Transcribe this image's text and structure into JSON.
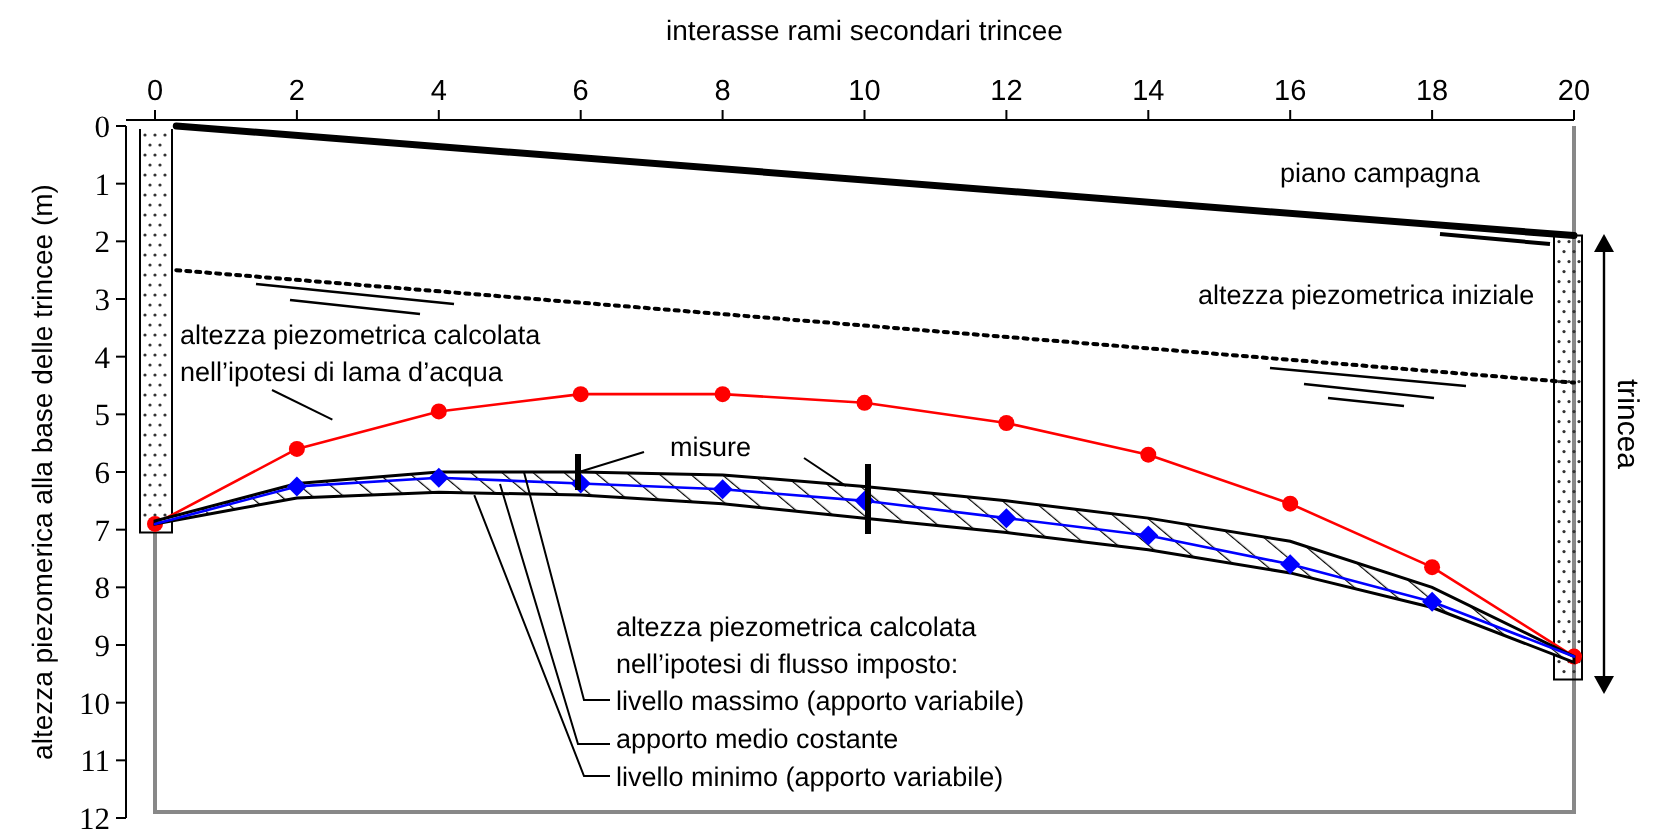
{
  "chart_data": {
    "type": "line",
    "xlabel": "interasse rami secondari trincee",
    "ylabel": "altezza piezomerica alla base delle trincee (m)",
    "xlim": [
      0,
      20
    ],
    "xticks": [
      0,
      2,
      4,
      6,
      8,
      10,
      12,
      14,
      16,
      18,
      20
    ],
    "ylim": [
      12,
      0
    ],
    "yticks": [
      0,
      1,
      2,
      3,
      4,
      5,
      6,
      7,
      8,
      9,
      10,
      11,
      12
    ],
    "series": [
      {
        "name": "piano campagna",
        "type": "line",
        "color": "#000000",
        "x": [
          0.3,
          20
        ],
        "values": [
          0,
          1.9
        ]
      },
      {
        "name": "altezza piezometrica iniziale",
        "type": "line",
        "line_style": "dotted",
        "color": "#000000",
        "x": [
          0.3,
          20
        ],
        "values": [
          2.5,
          4.45
        ]
      },
      {
        "type": "line",
        "marker": "circle",
        "color": "#ff0000",
        "x": [
          0,
          2,
          4,
          6,
          8,
          10,
          12,
          14,
          16,
          18,
          20
        ],
        "values": [
          6.9,
          5.6,
          4.95,
          4.65,
          4.65,
          4.8,
          5.15,
          5.7,
          6.55,
          7.65,
          9.2
        ]
      },
      {
        "name": "apporto medio costante",
        "type": "line",
        "color": "#0000ff",
        "x": [
          0,
          2,
          4,
          6,
          8,
          10,
          12,
          14,
          16,
          18,
          20
        ],
        "values": [
          6.9,
          6.25,
          6.1,
          6.2,
          6.3,
          6.5,
          6.8,
          7.1,
          7.6,
          8.25,
          9.2
        ],
        "lower": [
          6.85,
          6.2,
          6.0,
          6.0,
          6.05,
          6.25,
          6.5,
          6.8,
          7.2,
          8.0,
          9.2
        ],
        "upper": [
          6.9,
          6.45,
          6.35,
          6.4,
          6.55,
          6.8,
          7.05,
          7.35,
          7.75,
          8.35,
          9.3
        ]
      },
      {
        "type": "scatter",
        "marker": "diamond",
        "color": "#0000ff",
        "x": [
          2,
          4,
          6,
          8,
          10,
          12,
          14,
          16,
          18
        ],
        "values": [
          6.25,
          6.1,
          6.2,
          6.3,
          6.5,
          6.8,
          7.1,
          7.6,
          8.25
        ]
      }
    ],
    "annotations": [
      "altezza piezometrica calcolata\nnell’ipotesi di flusso imposto:",
      {
        "text": "livello massimo (apporto variabile)",
        "x": 5.2,
        "y": 6.0
      },
      {
        "text": "livello minimo (apporto variabile)",
        "x": 4.5,
        "y": 6.4
      },
      "trincea",
      {
        "text": "misure",
        "x": 6,
        "y": 6.2
      },
      {
        "text": "altezza piezometrica calcolata\nnell’ipotesi di lama d’acqua",
        "x": 2.5,
        "y": 5.3
      }
    ]
  }
}
